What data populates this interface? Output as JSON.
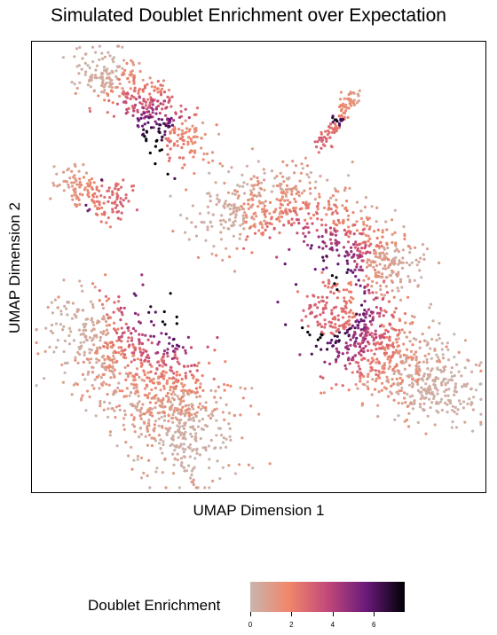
{
  "chart_data": {
    "type": "scatter",
    "title": "Simulated Doublet Enrichment over Expectation",
    "xlabel": "UMAP Dimension 1",
    "ylabel": "UMAP Dimension 2",
    "legend": {
      "title": "Doublet Enrichment",
      "ticks": [
        "0",
        "2",
        "4",
        "6"
      ],
      "range": [
        0,
        7.5
      ],
      "placement": "bottom",
      "colors": [
        "#c9b5ae",
        "#f0866a",
        "#c2497a",
        "#6a1a7a",
        "#000004"
      ]
    },
    "axis_ticks_shown": false,
    "grid": false,
    "clusters": [
      {
        "name": "top-left-arm",
        "n": 420,
        "spine": [
          [
            0.13,
            0.05
          ],
          [
            0.24,
            0.13
          ],
          [
            0.36,
            0.24
          ]
        ],
        "w": 0.055,
        "hi": [
          0.26,
          0.27
        ]
      },
      {
        "name": "left-small",
        "n": 160,
        "spine": [
          [
            0.07,
            0.31
          ],
          [
            0.2,
            0.36
          ]
        ],
        "w": 0.04,
        "hi": [
          0.22,
          0.36
        ]
      },
      {
        "name": "top-right-strand",
        "n": 110,
        "spine": [
          [
            0.72,
            0.11
          ],
          [
            0.63,
            0.24
          ]
        ],
        "w": 0.018,
        "hi": [
          0.62,
          0.23
        ]
      },
      {
        "name": "central-band",
        "n": 750,
        "spine": [
          [
            0.4,
            0.4
          ],
          [
            0.56,
            0.34
          ],
          [
            0.72,
            0.45
          ],
          [
            0.8,
            0.52
          ]
        ],
        "w": 0.08,
        "hi": [
          0.62,
          0.55
        ]
      },
      {
        "name": "right-lobe",
        "n": 820,
        "spine": [
          [
            0.65,
            0.58
          ],
          [
            0.78,
            0.7
          ],
          [
            0.92,
            0.78
          ]
        ],
        "w": 0.09,
        "hi": [
          0.63,
          0.6
        ]
      },
      {
        "name": "bottom-left-lobe",
        "n": 1000,
        "spine": [
          [
            0.1,
            0.63
          ],
          [
            0.28,
            0.75
          ],
          [
            0.36,
            0.9
          ]
        ],
        "w": 0.11,
        "hi": [
          0.33,
          0.57
        ]
      }
    ]
  }
}
